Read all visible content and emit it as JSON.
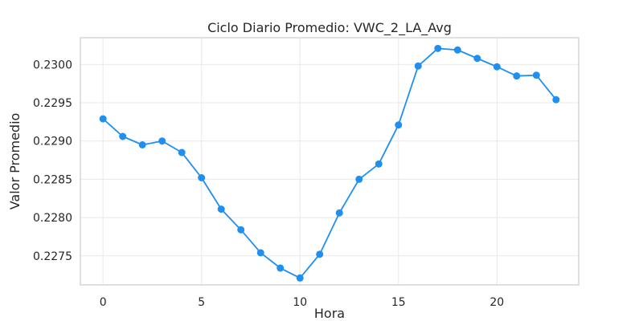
{
  "chart_data": {
    "type": "line",
    "title": "Ciclo Diario Promedio: VWC_2_LA_Avg",
    "xlabel": "Hora",
    "ylabel": "Valor Promedio",
    "xlim": [
      -1.15,
      24.15
    ],
    "ylim": [
      0.22712,
      0.23035
    ],
    "xticks": [
      0,
      5,
      10,
      15,
      20
    ],
    "yticks": [
      0.2275,
      0.228,
      0.2285,
      0.229,
      0.2295,
      0.23
    ],
    "ytick_labels": [
      "0.2275",
      "0.2280",
      "0.2285",
      "0.2290",
      "0.2295",
      "0.2300"
    ],
    "grid": true,
    "legend": "none",
    "series": [
      {
        "color": "#1f8ff0",
        "x": [
          0,
          1,
          2,
          3,
          4,
          5,
          6,
          7,
          8,
          9,
          10,
          11,
          12,
          13,
          14,
          15,
          16,
          17,
          18,
          19,
          20,
          21,
          22,
          23
        ],
        "y": [
          0.22929,
          0.22906,
          0.22895,
          0.229,
          0.22885,
          0.22852,
          0.22811,
          0.22784,
          0.22754,
          0.22734,
          0.22721,
          0.22752,
          0.22806,
          0.2285,
          0.2287,
          0.22921,
          0.22998,
          0.23021,
          0.23019,
          0.23008,
          0.22997,
          0.22985,
          0.22986,
          0.22954
        ]
      }
    ]
  }
}
